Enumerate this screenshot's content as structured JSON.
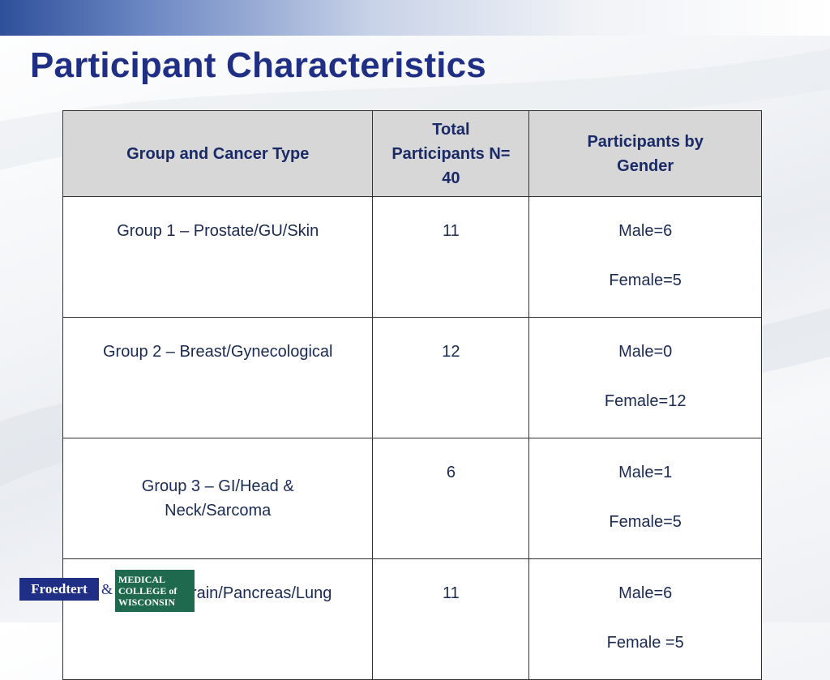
{
  "slide": {
    "title": "Participant Characteristics"
  },
  "table": {
    "headers": [
      "Group and Cancer Type",
      "Total Participants N= 40",
      "Participants by Gender"
    ],
    "rows": [
      {
        "group": "Group 1 – Prostate/GU/Skin",
        "total": "11",
        "male": "Male=6",
        "female": "Female=5"
      },
      {
        "group": "Group 2 – Breast/Gynecological",
        "total": "12",
        "male": "Male=0",
        "female": "Female=12"
      },
      {
        "group": "Group 3 – GI/Head & Neck/Sarcoma",
        "total": "6",
        "male": "Male=1",
        "female": "Female=5"
      },
      {
        "group": "Group 4 – Brain/Pancreas/Lung",
        "total": "11",
        "male": "Male=6",
        "female": "Female =5"
      }
    ]
  },
  "logo": {
    "left_text": "Froedtert",
    "ampersand": "&",
    "right_line1": "MEDICAL",
    "right_line2": "COLLEGE of",
    "right_line3": "WISCONSIN"
  },
  "colors": {
    "title": "#1f2f86",
    "header_bg": "#d7d7d7",
    "logo_blue": "#1f2f86",
    "logo_green": "#1f6a4f"
  }
}
